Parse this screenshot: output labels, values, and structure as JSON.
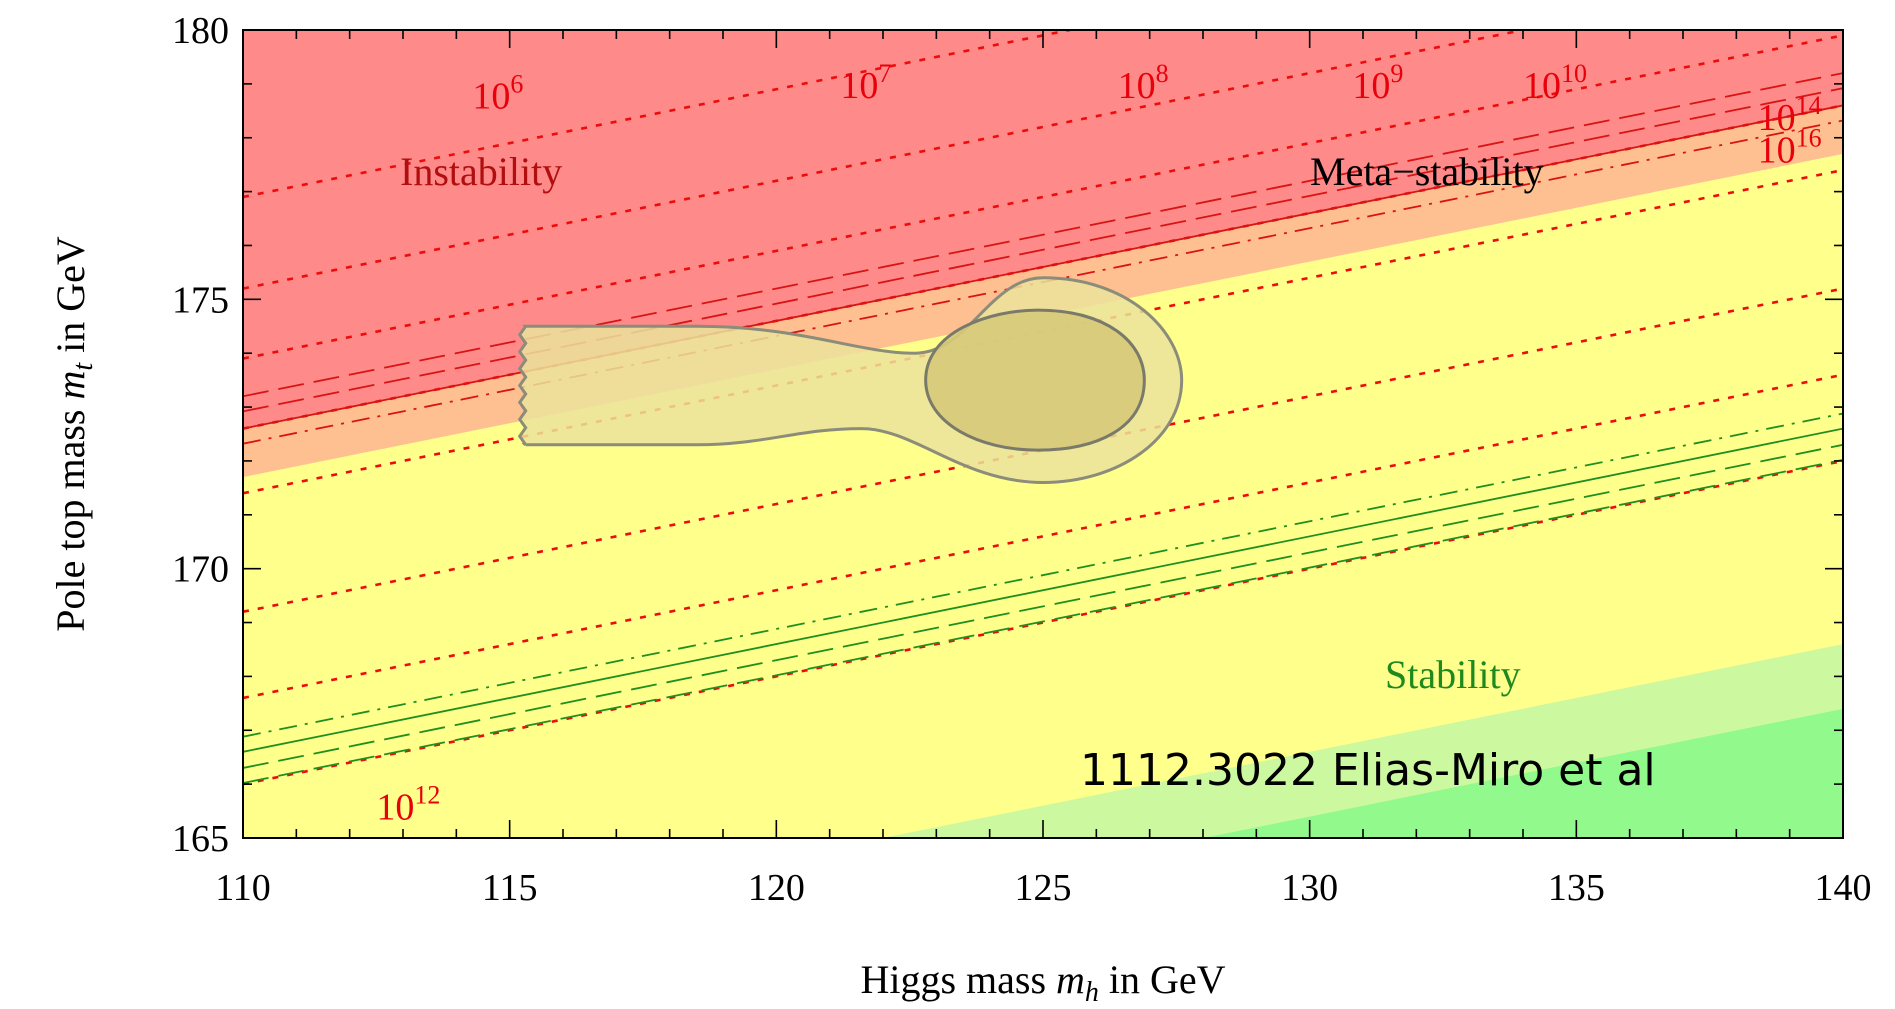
{
  "chart_data": {
    "type": "contour",
    "xlabel_parts": {
      "prefix": "Higgs mass ",
      "var": "m",
      "sub": "h",
      "suffix": " in GeV"
    },
    "ylabel_parts": {
      "prefix": "Pole top mass ",
      "var": "m",
      "sub": "t",
      "suffix": " in GeV"
    },
    "xlim": [
      110,
      140
    ],
    "ylim": [
      165,
      180
    ],
    "x_ticks": [
      110,
      115,
      120,
      125,
      130,
      135,
      140
    ],
    "y_ticks": [
      165,
      170,
      175,
      180
    ],
    "regions": [
      {
        "label": "Instability",
        "color": "#ff8a8a",
        "text_color": "#b10f0f"
      },
      {
        "label": "Meta−stability",
        "color": "#ffff8c",
        "text_color": "#000000"
      },
      {
        "label": "Stability",
        "color": "#8cf98c",
        "text_color": "#1e8a1e"
      }
    ],
    "region_boundaries": {
      "slope": 0.2,
      "instability_upper": {
        "x": [
          110,
          140
        ],
        "y": [
          172.6,
          178.6
        ]
      },
      "stability_lower": {
        "x": [
          110,
          140
        ],
        "y": [
          161.4,
          167.4
        ]
      }
    },
    "scale_lines": [
      {
        "base": "10",
        "exp": "6",
        "label_x": 114.3,
        "label_y": 178.8,
        "intercept_at_110": 176.9
      },
      {
        "base": "10",
        "exp": "7",
        "label_x": 121.2,
        "label_y": 179.0,
        "intercept_at_110": 175.2
      },
      {
        "base": "10",
        "exp": "8",
        "label_x": 126.4,
        "label_y": 179.0,
        "intercept_at_110": 173.9
      },
      {
        "base": "10",
        "exp": "9",
        "label_x": 130.8,
        "label_y": 179.0,
        "intercept_at_110": 172.6
      },
      {
        "base": "10",
        "exp": "10",
        "label_x": 134.0,
        "label_y": 179.0,
        "intercept_at_110": 171.4
      },
      {
        "base": "10",
        "exp": "14",
        "label_x": 138.4,
        "label_y": 178.4,
        "intercept_at_110": 169.2
      },
      {
        "base": "10",
        "exp": "16",
        "label_x": 138.4,
        "label_y": 177.8,
        "intercept_at_110": 167.6
      },
      {
        "base": "10",
        "exp": "12",
        "label_x": 112.5,
        "label_y": 165.6,
        "intercept_at_110": 166.0
      }
    ],
    "contours": {
      "confidence_outer": {
        "x_range": [
          115.3,
          127.6
        ],
        "y_range": [
          171.6,
          175.4
        ]
      },
      "confidence_inner": {
        "x_range": [
          122.8,
          126.9
        ],
        "y_range": [
          172.2,
          174.8
        ]
      }
    },
    "annotation": "1112.3022 Elias-Miro et al"
  }
}
